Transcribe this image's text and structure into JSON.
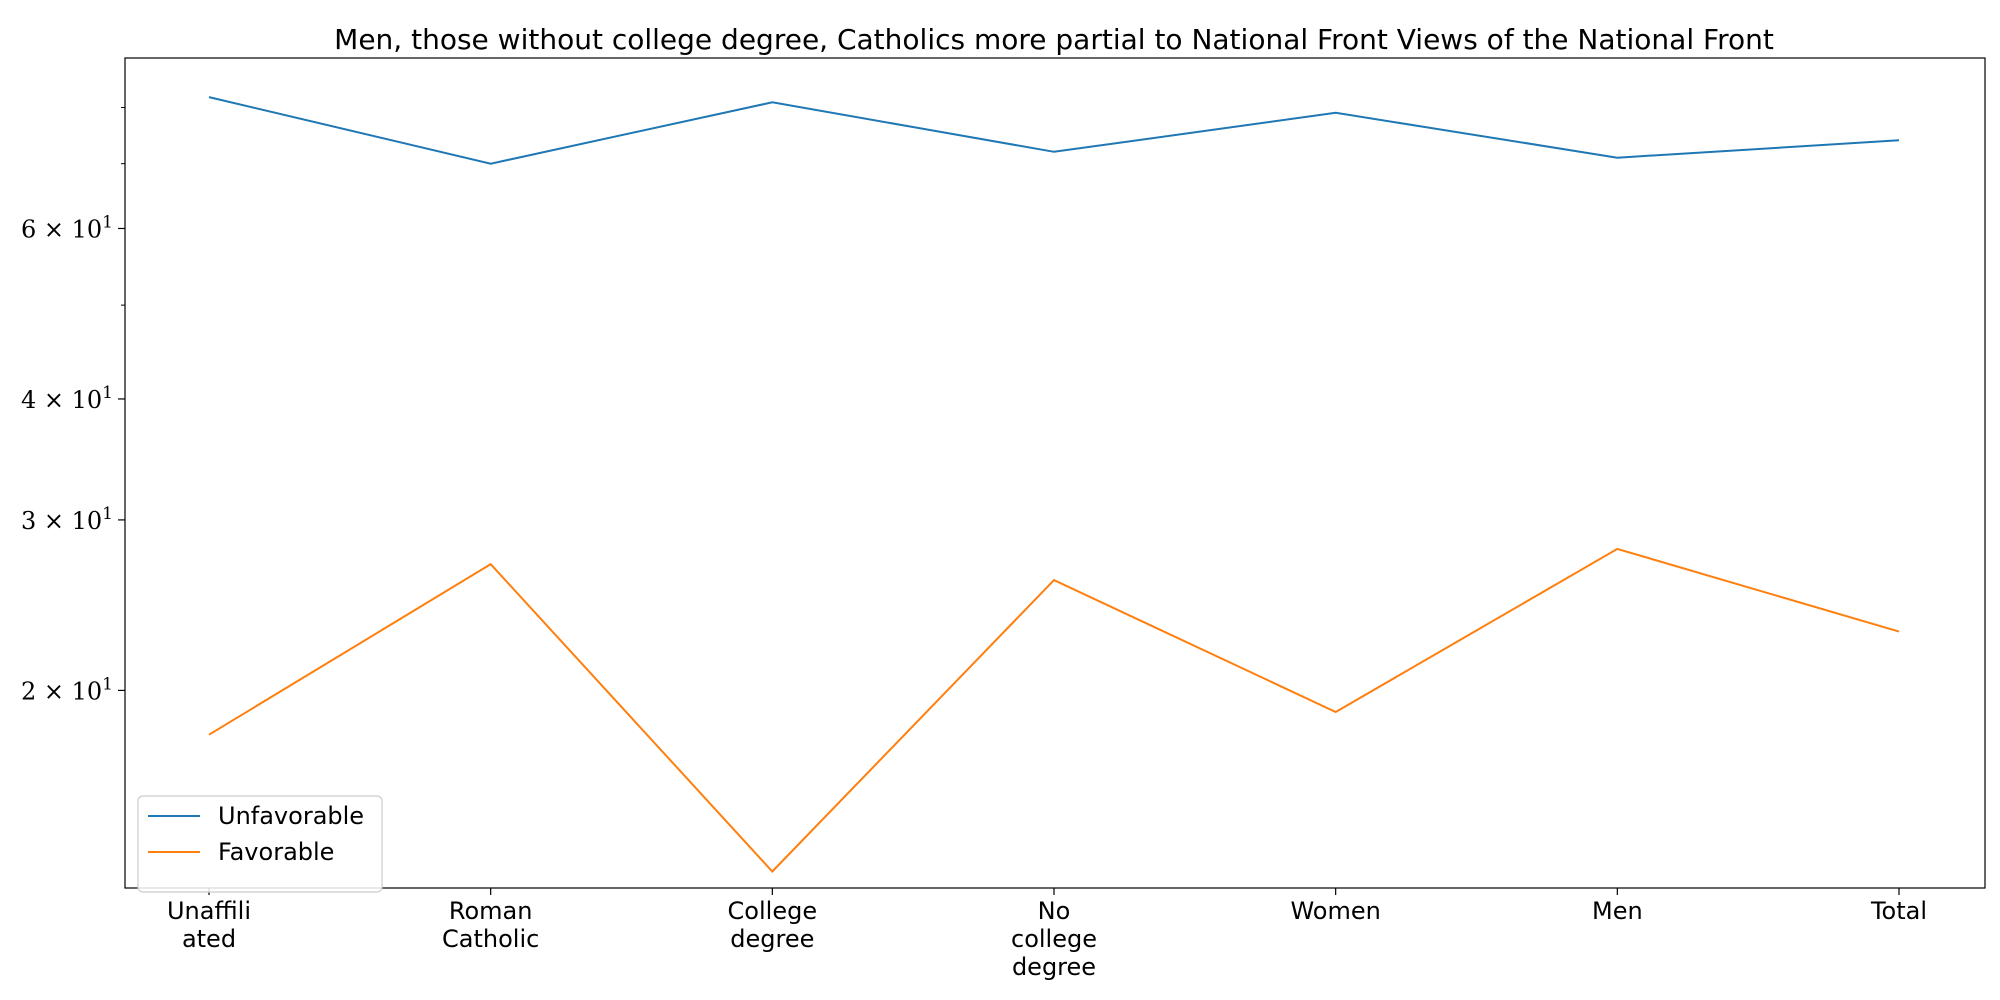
{
  "chart_data": {
    "type": "line",
    "title": "Men, those without college degree, Catholics more partial to National Front Views of the National Front",
    "xlabel": "",
    "ylabel": "",
    "yscale": "log",
    "ylim": [
      12.5,
      90
    ],
    "categories": [
      [
        "Unaffili",
        "ated"
      ],
      [
        "Roman",
        "Catholic"
      ],
      [
        "College",
        "degree"
      ],
      [
        "No",
        "college",
        "degree"
      ],
      [
        "Women"
      ],
      [
        "Men"
      ],
      [
        "Total"
      ]
    ],
    "y_ticks": [
      {
        "value": 20,
        "mantissa": "2",
        "base": "10",
        "exp": "1"
      },
      {
        "value": 30,
        "mantissa": "3",
        "base": "10",
        "exp": "1"
      },
      {
        "value": 40,
        "mantissa": "4",
        "base": "10",
        "exp": "1"
      },
      {
        "value": 60,
        "mantissa": "6",
        "base": "10",
        "exp": "1"
      }
    ],
    "y_minor_ticks": [
      50,
      70,
      80
    ],
    "series": [
      {
        "name": "Unfavorable",
        "color": "#1f77b4",
        "values": [
          82,
          70,
          81,
          72,
          79,
          71,
          74
        ]
      },
      {
        "name": "Favorable",
        "color": "#ff7f0e",
        "values": [
          18,
          27,
          13,
          26,
          19,
          28,
          23
        ]
      }
    ],
    "grid": false,
    "legend_position": "lower-left"
  }
}
